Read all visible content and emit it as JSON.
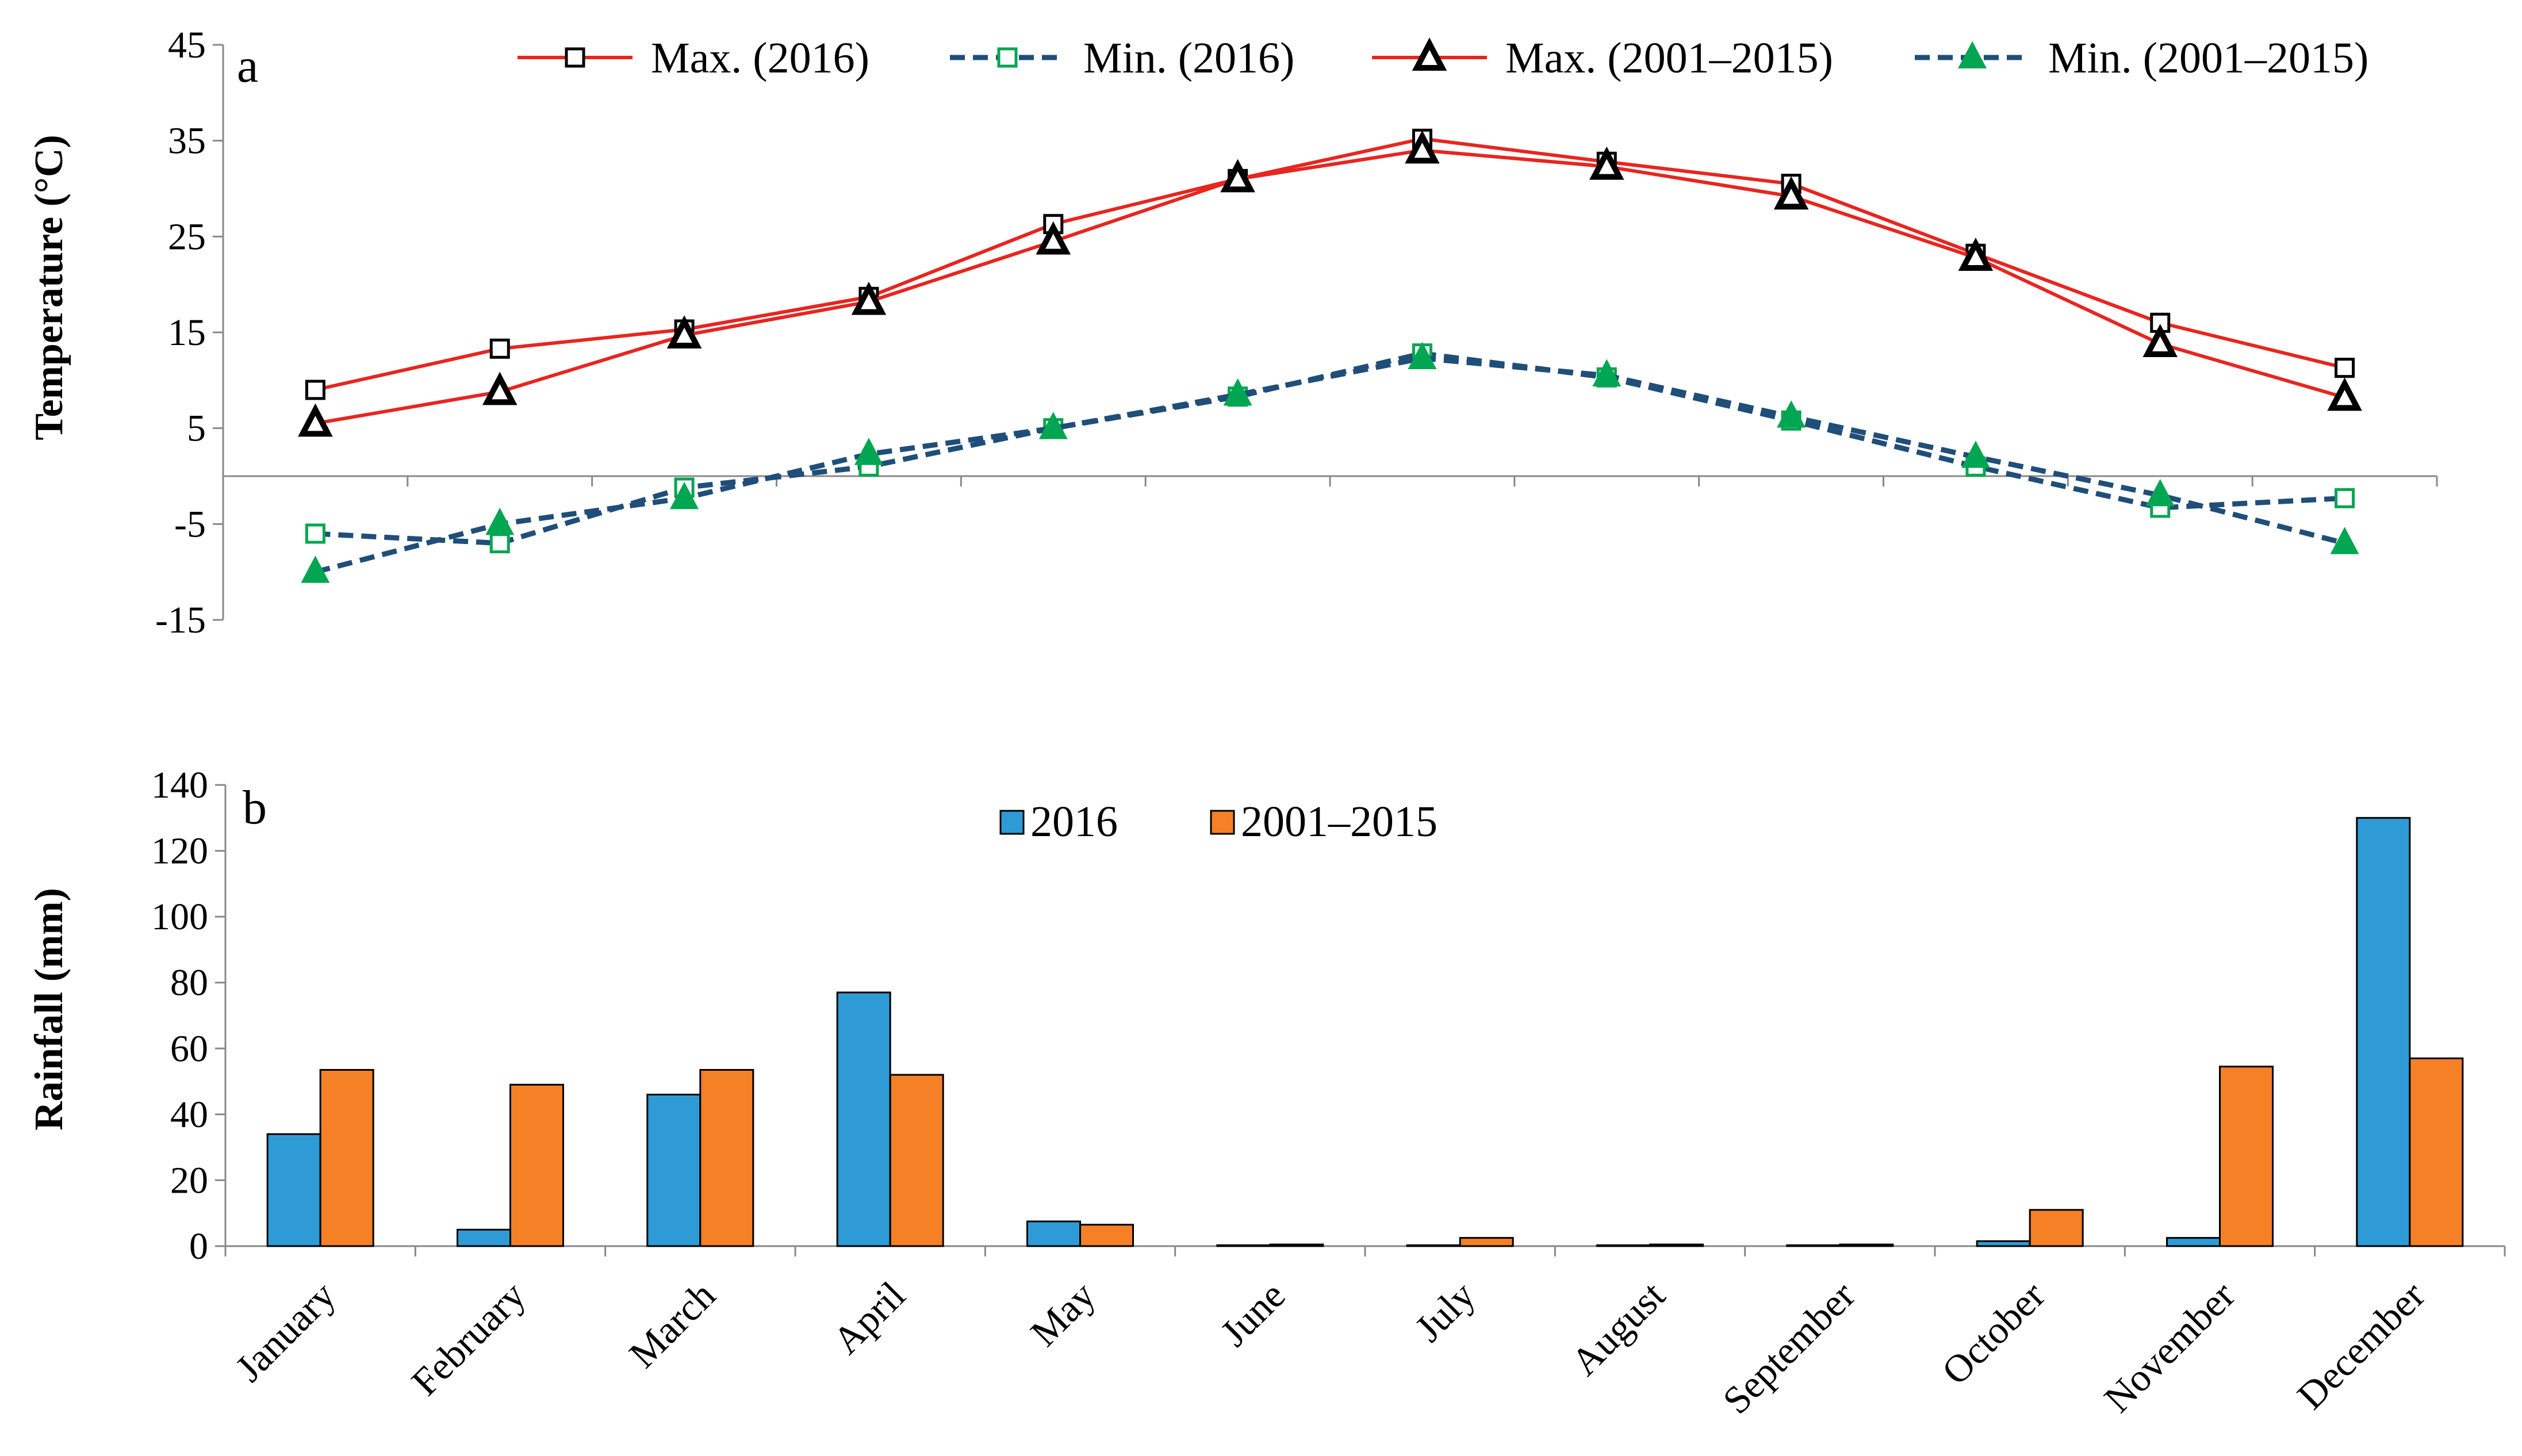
{
  "chart_data": [
    {
      "type": "line",
      "panel_label": "a",
      "ylabel": "Temperature (°C)",
      "ylim": [
        -15,
        45
      ],
      "yticks": [
        45,
        35,
        25,
        15,
        5,
        -5,
        -15
      ],
      "ytick_labels": [
        "45",
        "35",
        "25",
        "15",
        "5",
        "-5",
        "-15"
      ],
      "categories": [
        "January",
        "February",
        "March",
        "April",
        "May",
        "June",
        "July",
        "August",
        "September",
        "October",
        "November",
        "December"
      ],
      "series": [
        {
          "name": "Max. (2016)",
          "color": "#e8251f",
          "dash": false,
          "marker": "square-open",
          "values": [
            9,
            13.3,
            15.3,
            18.7,
            26.3,
            31,
            35.2,
            32.8,
            30.5,
            23.2,
            16,
            11.3
          ]
        },
        {
          "name": "Min. (2016)",
          "color": "#1f4e79",
          "marker_color": "#00a651",
          "dash": true,
          "marker": "square-open",
          "values": [
            -6,
            -7,
            -1.2,
            1,
            5,
            8.3,
            12.8,
            10.3,
            5.8,
            1,
            -3.3,
            -2.3
          ]
        },
        {
          "name": "Max. (2001–2015)",
          "color": "#e8251f",
          "dash": false,
          "marker": "triangle-open",
          "values": [
            5.5,
            8.8,
            14.7,
            18.2,
            24.5,
            31,
            34,
            32.3,
            29.2,
            22.8,
            13.8,
            8.2
          ]
        },
        {
          "name": "Min. (2001–2015)",
          "color": "#1f4e79",
          "marker_color": "#00a651",
          "dash": true,
          "marker": "triangle-filled",
          "values": [
            -10,
            -5,
            -2.3,
            2.3,
            5,
            8.5,
            12.3,
            10.5,
            6.2,
            2,
            -2,
            -7
          ]
        }
      ]
    },
    {
      "type": "bar",
      "panel_label": "b",
      "ylabel": "Rainfall (mm)",
      "ylim": [
        0,
        140
      ],
      "yticks": [
        0,
        20,
        40,
        60,
        80,
        100,
        120,
        140
      ],
      "ytick_labels": [
        "0",
        "20",
        "40",
        "60",
        "80",
        "100",
        "120",
        "140"
      ],
      "categories": [
        "January",
        "February",
        "March",
        "April",
        "May",
        "June",
        "July",
        "August",
        "September",
        "October",
        "November",
        "December"
      ],
      "series": [
        {
          "name": "2016",
          "color": "#2e9bd6",
          "values": [
            34,
            5,
            46,
            77,
            7.5,
            0,
            0,
            0,
            0,
            1.5,
            2.5,
            130
          ]
        },
        {
          "name": "2001–2015",
          "color": "#f58025",
          "values": [
            53.5,
            49,
            53.5,
            52,
            6.5,
            0.5,
            2.5,
            0.5,
            0.5,
            11,
            54.5,
            57
          ]
        }
      ]
    }
  ]
}
